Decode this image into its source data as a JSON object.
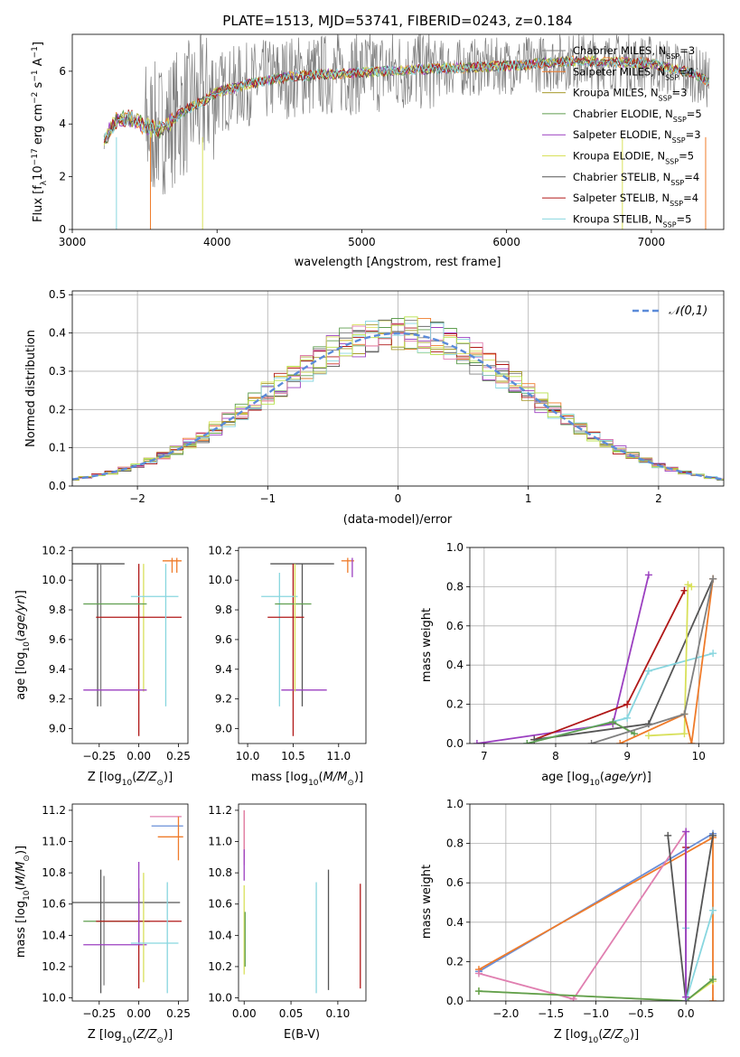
{
  "figure_title": "PLATE=1513, MJD=53741, FIBERID=0243, z=0.184",
  "colors": {
    "c1": "#808080",
    "c2": "#ef7b2a",
    "c3": "#a89b2e",
    "c4": "#5f9e4f",
    "c5": "#9b3fc0",
    "c6": "#d8e05a",
    "c7": "#555555",
    "c8": "#b01818",
    "c9": "#88d6df",
    "hist_extra_blue": "#6a8fd8",
    "hist_extra_pink": "#e07fb0",
    "hist_extra_lime": "#b6e04a"
  },
  "chart_data": [
    {
      "id": "spectrum",
      "type": "line",
      "xlabel": "wavelength [Angstrom, rest frame]",
      "ylabel": "Flux [f",
      "ylabel_sub": "λ",
      "ylabel_rest": "10",
      "ylabel_exp": "−17",
      "ylabel_units": " erg cm",
      "xlim": [
        3000,
        7500
      ],
      "ylim": [
        0,
        7.4
      ],
      "xticks": [
        3000,
        4000,
        5000,
        6000,
        7000
      ],
      "yticks": [
        0,
        2,
        4,
        6
      ],
      "continuum": [
        [
          3220,
          3.35
        ],
        [
          3300,
          4.1
        ],
        [
          3400,
          4.2
        ],
        [
          3500,
          3.9
        ],
        [
          3600,
          3.75
        ],
        [
          3700,
          4.2
        ],
        [
          3800,
          4.6
        ],
        [
          3900,
          4.85
        ],
        [
          4000,
          5.2
        ],
        [
          4200,
          5.5
        ],
        [
          4500,
          5.8
        ],
        [
          5000,
          5.95
        ],
        [
          5500,
          6.1
        ],
        [
          6000,
          6.2
        ],
        [
          6500,
          6.4
        ],
        [
          7000,
          6.3
        ],
        [
          7300,
          5.9
        ],
        [
          7400,
          5.6
        ]
      ],
      "legend": [
        {
          "name": "Chabrier MILES, N",
          "sub": "SSP",
          "val": "=3",
          "color": "c1"
        },
        {
          "name": "Salpeter MILES, N",
          "sub": "SSP",
          "val": "=4",
          "color": "c2"
        },
        {
          "name": "Kroupa MILES, N",
          "sub": "SSP",
          "val": "=3",
          "color": "c3"
        },
        {
          "name": "Chabrier ELODIE, N",
          "sub": "SSP",
          "val": "=5",
          "color": "c4"
        },
        {
          "name": "Salpeter ELODIE, N",
          "sub": "SSP",
          "val": "=3",
          "color": "c5"
        },
        {
          "name": "Kroupa ELODIE, N",
          "sub": "SSP",
          "val": "=5",
          "color": "c6"
        },
        {
          "name": "Chabrier STELIB, N",
          "sub": "SSP",
          "val": "=4",
          "color": "c7"
        },
        {
          "name": "Salpeter STELIB, N",
          "sub": "SSP",
          "val": "=4",
          "color": "c8"
        },
        {
          "name": "Kroupa STELIB, N",
          "sub": "SSP",
          "val": "=5",
          "color": "c9"
        }
      ]
    },
    {
      "id": "residual_hist",
      "type": "line",
      "xlabel": "(data-model)/error",
      "ylabel": "Normed distribution",
      "xlim": [
        -2.5,
        2.5
      ],
      "ylim": [
        0,
        0.51
      ],
      "xticks": [
        -2,
        -1,
        0,
        1,
        2
      ],
      "yticks": [
        0.0,
        0.1,
        0.2,
        0.3,
        0.4,
        0.5
      ],
      "legend_label": "𝒩(0,1)",
      "grid": true
    },
    {
      "id": "age_vs_Z",
      "type": "scatter",
      "xlabel": "Z [log",
      "xlabel_sub": "10",
      "xlabel_rest": "(Z/Z",
      "ylabel": "age  [log",
      "xlim": [
        -0.42,
        0.31
      ],
      "ylim": [
        8.9,
        10.22
      ],
      "xticks": [
        -0.25,
        0.0,
        0.25
      ],
      "yticks": [
        9.0,
        9.2,
        9.4,
        9.6,
        9.8,
        10.0,
        10.2
      ],
      "points": [
        {
          "x": -0.26,
          "y": 10.11,
          "xerr": 0.17,
          "ylo": 9.15,
          "yhi": 10.11,
          "color": "c7"
        },
        {
          "x": -0.24,
          "y": 10.11,
          "xerr": 0.0,
          "ylo": 9.15,
          "yhi": 10.11,
          "color": "c1"
        },
        {
          "x": 0.0,
          "y": 10.11,
          "xerr": 0.0,
          "ylo": 8.95,
          "yhi": 10.11,
          "color": "c8"
        },
        {
          "x": 0.03,
          "y": 9.84,
          "xerr": 0.0,
          "ylo": 9.25,
          "yhi": 10.11,
          "color": "c6"
        },
        {
          "x": -0.15,
          "y": 9.84,
          "xerr": 0.2,
          "ylo": 9.84,
          "yhi": 9.84,
          "color": "c4"
        },
        {
          "x": 0.0,
          "y": 9.75,
          "xerr": 0.27,
          "ylo": 9.75,
          "yhi": 9.75,
          "color": "c8"
        },
        {
          "x": 0.1,
          "y": 9.89,
          "xerr": 0.15,
          "ylo": 9.89,
          "yhi": 9.89,
          "color": "c9"
        },
        {
          "x": 0.17,
          "y": 9.89,
          "xerr": 0.0,
          "ylo": 9.15,
          "yhi": 10.11,
          "color": "c9"
        },
        {
          "x": -0.15,
          "y": 9.26,
          "xerr": 0.2,
          "ylo": 9.26,
          "yhi": 9.26,
          "color": "c5"
        },
        {
          "x": 0.21,
          "y": 10.13,
          "xerr": 0.06,
          "ylo": 10.05,
          "yhi": 10.15,
          "color": "c2"
        },
        {
          "x": 0.24,
          "y": 10.13,
          "xerr": 0.0,
          "ylo": 10.05,
          "yhi": 10.15,
          "color": "c2"
        }
      ]
    },
    {
      "id": "age_vs_mass",
      "type": "scatter",
      "xlabel": "mass [log",
      "xlim": [
        9.9,
        11.3
      ],
      "ylim": [
        8.9,
        10.22
      ],
      "xticks": [
        10.0,
        10.5,
        11.0
      ],
      "yticks": [
        9.0,
        9.2,
        9.4,
        9.6,
        9.8,
        10.0,
        10.2
      ],
      "points": [
        {
          "x": 10.6,
          "y": 10.11,
          "xerr": 0.35,
          "ylo": 9.15,
          "yhi": 10.11,
          "color": "c7"
        },
        {
          "x": 10.5,
          "y": 10.11,
          "xerr": 0.0,
          "ylo": 8.95,
          "yhi": 10.11,
          "color": "c8"
        },
        {
          "x": 10.35,
          "y": 9.89,
          "xerr": 0.2,
          "ylo": 9.15,
          "yhi": 10.05,
          "color": "c9"
        },
        {
          "x": 10.5,
          "y": 9.84,
          "xerr": 0.2,
          "ylo": 9.84,
          "yhi": 9.84,
          "color": "c4"
        },
        {
          "x": 10.42,
          "y": 9.75,
          "xerr": 0.2,
          "ylo": 9.75,
          "yhi": 9.75,
          "color": "c8"
        },
        {
          "x": 10.62,
          "y": 9.26,
          "xerr": 0.25,
          "ylo": 9.26,
          "yhi": 9.26,
          "color": "c5"
        },
        {
          "x": 10.52,
          "y": 9.84,
          "xerr": 0.0,
          "ylo": 9.25,
          "yhi": 10.11,
          "color": "c6"
        },
        {
          "x": 11.1,
          "y": 10.13,
          "xerr": 0.07,
          "ylo": 10.05,
          "yhi": 10.15,
          "color": "c2"
        },
        {
          "x": 11.15,
          "y": 10.13,
          "xerr": 0.0,
          "ylo": 10.02,
          "yhi": 10.15,
          "color": "c5"
        }
      ]
    },
    {
      "id": "weight_vs_age",
      "type": "line",
      "xlabel": "age  [log",
      "ylabel": "mass weight",
      "xlim": [
        6.8,
        10.35
      ],
      "ylim": [
        0,
        1.0
      ],
      "xticks": [
        7,
        8,
        9,
        10
      ],
      "yticks": [
        0.0,
        0.2,
        0.4,
        0.6,
        0.8,
        1.0
      ],
      "grid": true,
      "series": [
        {
          "color": "c5",
          "x": [
            6.9,
            8.8,
            9.3
          ],
          "y": [
            0.0,
            0.1,
            0.86
          ]
        },
        {
          "color": "c8",
          "x": [
            7.7,
            9.0,
            9.8
          ],
          "y": [
            0.02,
            0.2,
            0.78
          ]
        },
        {
          "color": "c7",
          "x": [
            7.7,
            9.3,
            10.2
          ],
          "y": [
            0.02,
            0.1,
            0.84
          ]
        },
        {
          "color": "c9",
          "x": [
            7.6,
            9.0,
            9.3,
            10.2
          ],
          "y": [
            0.0,
            0.13,
            0.37,
            0.46
          ]
        },
        {
          "color": "c4",
          "x": [
            7.6,
            8.8,
            9.1
          ],
          "y": [
            0.0,
            0.11,
            0.05
          ]
        },
        {
          "color": "c6",
          "x": [
            9.3,
            9.8,
            9.85,
            9.9
          ],
          "y": [
            0.04,
            0.05,
            0.81,
            0.8
          ]
        },
        {
          "color": "c2",
          "x": [
            8.9,
            9.8,
            9.9,
            10.2
          ],
          "y": [
            0.0,
            0.15,
            0.0,
            0.84
          ]
        },
        {
          "color": "c1",
          "x": [
            8.5,
            9.8,
            10.2
          ],
          "y": [
            0.0,
            0.15,
            0.84
          ]
        }
      ]
    },
    {
      "id": "mass_vs_Z",
      "type": "scatter",
      "xlabel": "Z [log",
      "ylabel": "mass [log",
      "xlim": [
        -0.42,
        0.31
      ],
      "ylim": [
        9.98,
        11.24
      ],
      "xticks": [
        -0.25,
        0.0,
        0.25
      ],
      "yticks": [
        10.0,
        10.2,
        10.4,
        10.6,
        10.8,
        11.0,
        11.2
      ],
      "points": [
        {
          "x": -0.1,
          "y": 10.61,
          "xerr": 0.36,
          "ylo": 10.61,
          "yhi": 10.61,
          "color": "c7"
        },
        {
          "x": -0.24,
          "y": 10.61,
          "xerr": 0.0,
          "ylo": 10.03,
          "yhi": 10.82,
          "color": "c7"
        },
        {
          "x": -0.22,
          "y": 10.61,
          "xerr": 0.0,
          "ylo": 10.08,
          "yhi": 10.78,
          "color": "c1"
        },
        {
          "x": -0.14,
          "y": 10.49,
          "xerr": 0.21,
          "ylo": 10.49,
          "yhi": 10.49,
          "color": "c4"
        },
        {
          "x": 0.0,
          "y": 10.49,
          "xerr": 0.27,
          "ylo": 10.49,
          "yhi": 10.49,
          "color": "c8"
        },
        {
          "x": 0.0,
          "y": 10.49,
          "xerr": 0.0,
          "ylo": 10.06,
          "yhi": 10.7,
          "color": "c8"
        },
        {
          "x": -0.15,
          "y": 10.34,
          "xerr": 0.2,
          "ylo": 10.34,
          "yhi": 10.34,
          "color": "c5"
        },
        {
          "x": 0.0,
          "y": 10.34,
          "xerr": 0.0,
          "ylo": 10.34,
          "yhi": 10.87,
          "color": "c5"
        },
        {
          "x": 0.03,
          "y": 10.49,
          "xerr": 0.0,
          "ylo": 10.1,
          "yhi": 10.8,
          "color": "c6"
        },
        {
          "x": 0.1,
          "y": 10.35,
          "xerr": 0.15,
          "ylo": 10.35,
          "yhi": 10.35,
          "color": "c9"
        },
        {
          "x": 0.18,
          "y": 10.35,
          "xerr": 0.0,
          "ylo": 10.03,
          "yhi": 10.74,
          "color": "c9"
        },
        {
          "x": 0.17,
          "y": 11.16,
          "xerr": 0.1,
          "ylo": 11.16,
          "yhi": 11.16,
          "color": "hist_extra_pink"
        },
        {
          "x": 0.18,
          "y": 11.1,
          "xerr": 0.1,
          "ylo": 11.1,
          "yhi": 11.1,
          "color": "hist_extra_blue"
        },
        {
          "x": 0.2,
          "y": 11.03,
          "xerr": 0.08,
          "ylo": 11.03,
          "yhi": 11.03,
          "color": "c2"
        },
        {
          "x": 0.25,
          "y": 11.03,
          "xerr": 0.0,
          "ylo": 10.88,
          "yhi": 11.16,
          "color": "c2"
        }
      ]
    },
    {
      "id": "mass_vs_ebv",
      "type": "scatter",
      "xlabel": "E(B-V)",
      "xlim": [
        -0.006,
        0.13
      ],
      "ylim": [
        9.98,
        11.24
      ],
      "xticks": [
        0.0,
        0.05,
        0.1
      ],
      "yticks": [
        10.0,
        10.2,
        10.4,
        10.6,
        10.8,
        11.0,
        11.2
      ],
      "points": [
        {
          "x": 0.0,
          "ylo": 10.9,
          "yhi": 11.2,
          "color": "c2"
        },
        {
          "x": 0.0,
          "ylo": 10.85,
          "yhi": 11.2,
          "color": "hist_extra_pink"
        },
        {
          "x": 0.0,
          "ylo": 10.75,
          "yhi": 10.95,
          "color": "c5"
        },
        {
          "x": 0.0,
          "ylo": 10.15,
          "yhi": 10.72,
          "color": "c6"
        },
        {
          "x": 0.001,
          "ylo": 10.2,
          "yhi": 10.55,
          "color": "c4"
        },
        {
          "x": 0.077,
          "ylo": 10.03,
          "yhi": 10.74,
          "color": "c9"
        },
        {
          "x": 0.09,
          "ylo": 10.05,
          "yhi": 10.82,
          "color": "c7"
        },
        {
          "x": 0.124,
          "ylo": 10.06,
          "yhi": 10.73,
          "color": "c8"
        }
      ]
    },
    {
      "id": "weight_vs_Z",
      "type": "line",
      "xlabel": "Z [log",
      "ylabel": "mass weight",
      "xlim": [
        -2.4,
        0.42
      ],
      "ylim": [
        0,
        1.0
      ],
      "xticks": [
        -2.0,
        -1.5,
        -1.0,
        -0.5,
        0.0
      ],
      "yticks": [
        0.0,
        0.2,
        0.4,
        0.6,
        0.8,
        1.0
      ],
      "grid": true,
      "series": [
        {
          "color": "hist_extra_blue",
          "x": [
            -2.3,
            0.3
          ],
          "y": [
            0.15,
            0.85
          ]
        },
        {
          "color": "c2",
          "x": [
            -2.3,
            0.3,
            0.3
          ],
          "y": [
            0.16,
            0.83,
            0.0
          ]
        },
        {
          "color": "hist_extra_pink",
          "x": [
            -2.3,
            -1.25,
            0.0
          ],
          "y": [
            0.14,
            0.01,
            0.86
          ]
        },
        {
          "color": "c6",
          "x": [
            -2.3,
            0.0,
            0.3
          ],
          "y": [
            0.05,
            0.0,
            0.1
          ]
        },
        {
          "color": "c4",
          "x": [
            -2.3,
            0.0,
            0.3
          ],
          "y": [
            0.05,
            0.0,
            0.11
          ]
        },
        {
          "color": "c7",
          "x": [
            -0.2,
            0.0,
            0.3
          ],
          "y": [
            0.84,
            0.0,
            0.84
          ]
        },
        {
          "color": "c8",
          "x": [
            0.0,
            0.0
          ],
          "y": [
            0.0,
            0.78
          ]
        },
        {
          "color": "c9",
          "x": [
            0.0,
            0.0,
            0.3
          ],
          "y": [
            0.37,
            0.0,
            0.46
          ]
        },
        {
          "color": "c5",
          "x": [
            0.0,
            0.0
          ],
          "y": [
            0.02,
            0.86
          ]
        }
      ]
    }
  ]
}
